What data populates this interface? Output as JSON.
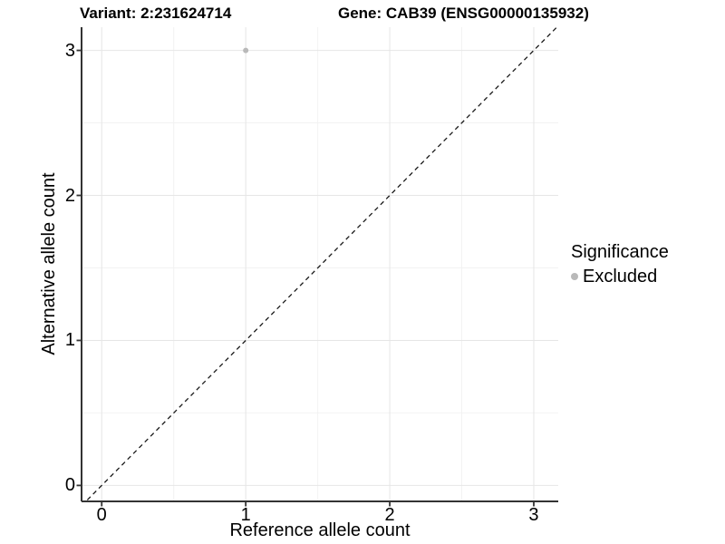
{
  "titles": {
    "variant": "Variant: 2:231624714",
    "gene": "Gene: CAB39 (ENSG00000135932)"
  },
  "chart_data": {
    "type": "scatter",
    "title_left": "Variant: 2:231624714",
    "title_right": "Gene: CAB39 (ENSG00000135932)",
    "xlabel": "Reference allele count",
    "ylabel": "Alternative allele count",
    "xlim": [
      -0.14,
      3.17
    ],
    "ylim": [
      -0.11,
      3.16
    ],
    "xticks": [
      0,
      1,
      2,
      3
    ],
    "yticks": [
      0,
      1,
      2,
      3
    ],
    "minor_xticks": [
      0.5,
      1.5,
      2.5
    ],
    "minor_yticks": [
      0.5,
      1.5,
      2.5
    ],
    "grid": true,
    "points": [
      {
        "x": 1,
        "y": 3,
        "significance": "Excluded"
      }
    ],
    "identity_line": {
      "slope": 1,
      "intercept": 0,
      "style": "dashed",
      "color": "#1a1a1a"
    },
    "legend": {
      "title": "Significance",
      "position": "right",
      "items": [
        {
          "label": "Excluded",
          "color": "#b9b9b9"
        }
      ]
    },
    "colors": {
      "point": "#b9b9b9",
      "axis_line": "#333333",
      "grid_major": "#e6e6e6",
      "grid_minor": "#f2f2f2",
      "text": "#000000"
    }
  }
}
